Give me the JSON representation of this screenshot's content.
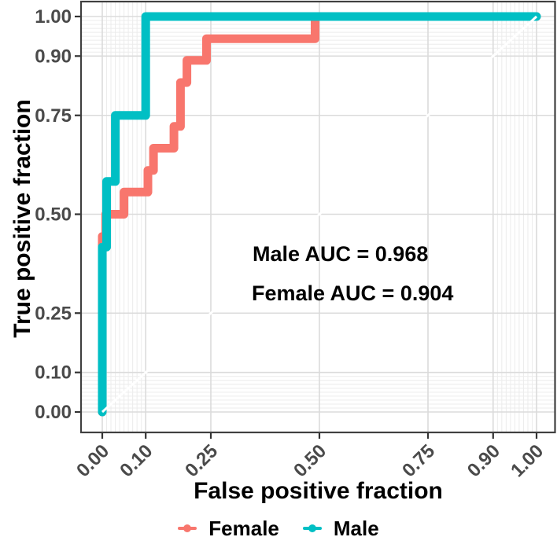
{
  "chart_data": {
    "type": "line",
    "subtype": "roc-step-curves",
    "title": "",
    "xlabel": "False positive fraction",
    "ylabel": "True positive fraction",
    "xlim": [
      0,
      1
    ],
    "ylim": [
      0,
      1
    ],
    "grid": "on",
    "axis_breaks": [
      0,
      0.1,
      0.25,
      0.5,
      0.75,
      0.9,
      1.0
    ],
    "axis_tick_labels": [
      "0.00",
      "0.10",
      "0.25",
      "0.50",
      "0.75",
      "0.90",
      "1.00"
    ],
    "minor_breaks": [
      0.01,
      0.02,
      0.03,
      0.04,
      0.05,
      0.06,
      0.07,
      0.08,
      0.09,
      0.91,
      0.92,
      0.93,
      0.94,
      0.95,
      0.96,
      0.97,
      0.98,
      0.99
    ],
    "diagonal_guide": {
      "from": [
        0,
        0
      ],
      "to": [
        1,
        1
      ],
      "color": "#ffffff"
    },
    "series": [
      {
        "name": "Female",
        "color": "#F8766D",
        "auc": 0.904,
        "points": [
          [
            0,
            0
          ],
          [
            0,
            0.444
          ],
          [
            0.008,
            0.444
          ],
          [
            0.008,
            0.5
          ],
          [
            0.05,
            0.5
          ],
          [
            0.05,
            0.556
          ],
          [
            0.105,
            0.556
          ],
          [
            0.105,
            0.611
          ],
          [
            0.118,
            0.611
          ],
          [
            0.118,
            0.667
          ],
          [
            0.165,
            0.667
          ],
          [
            0.165,
            0.722
          ],
          [
            0.18,
            0.722
          ],
          [
            0.18,
            0.833
          ],
          [
            0.195,
            0.833
          ],
          [
            0.195,
            0.889
          ],
          [
            0.24,
            0.889
          ],
          [
            0.24,
            0.944
          ],
          [
            0.49,
            0.944
          ],
          [
            0.49,
            1
          ],
          [
            1,
            1
          ]
        ]
      },
      {
        "name": "Male",
        "color": "#00BFC4",
        "auc": 0.968,
        "points": [
          [
            0,
            0
          ],
          [
            0,
            0.417
          ],
          [
            0.01,
            0.417
          ],
          [
            0.01,
            0.583
          ],
          [
            0.03,
            0.583
          ],
          [
            0.03,
            0.75
          ],
          [
            0.1,
            0.75
          ],
          [
            0.1,
            1
          ],
          [
            1,
            1
          ]
        ]
      }
    ],
    "annotations": [
      {
        "text": "Male AUC = 0.968"
      },
      {
        "text": "Female AUC = 0.904"
      }
    ],
    "legend_position": "bottom"
  },
  "axes": {
    "x_title": "False positive fraction",
    "y_title": "True positive fraction"
  },
  "annotations": {
    "male_auc": "Male AUC = 0.968",
    "female_auc": "Female AUC = 0.904"
  },
  "legend": {
    "items": [
      {
        "label": "Female",
        "color": "#F8766D"
      },
      {
        "label": "Male",
        "color": "#00BFC4"
      }
    ]
  },
  "colors": {
    "female": "#F8766D",
    "male": "#00BFC4",
    "grid_major": "#DBDBDB",
    "grid_minor": "#ECECEC",
    "panel_border": "#404040",
    "tick": "#333333",
    "tick_label": "#4a4a4a",
    "diagonal": "#ffffff"
  }
}
